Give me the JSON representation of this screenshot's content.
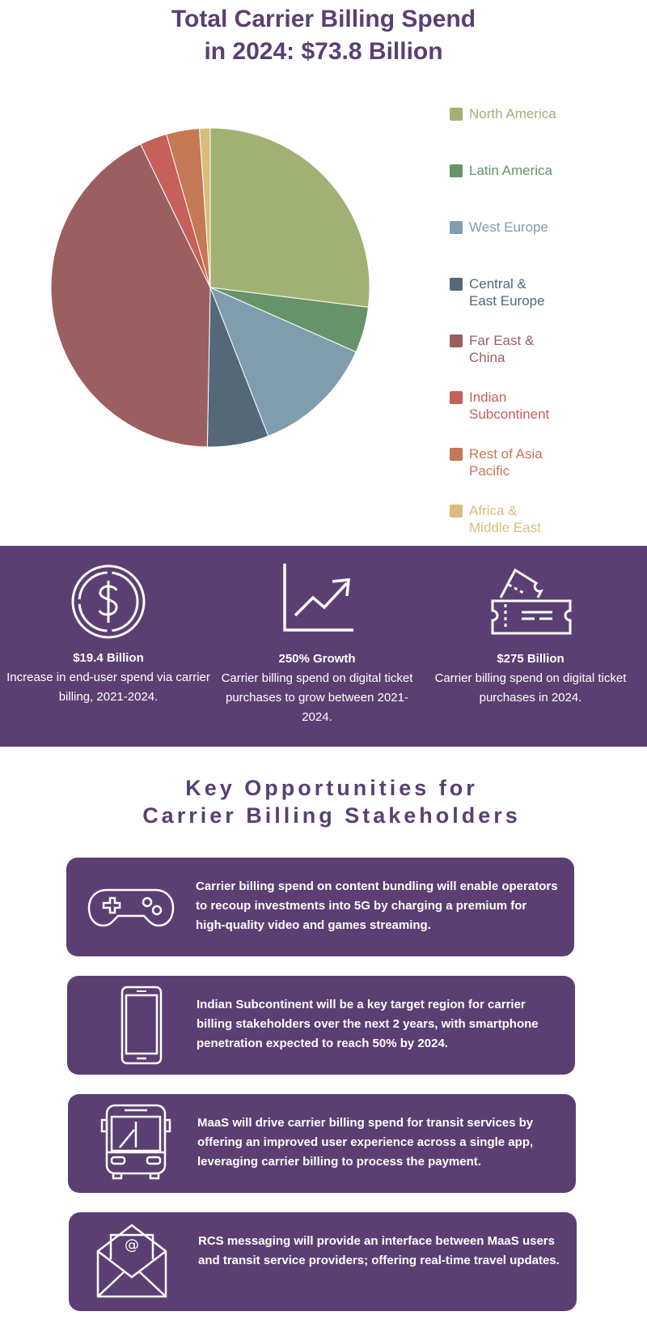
{
  "title": {
    "line1": "Total Carrier Billing Spend",
    "line2": "in 2024: $73.8 Billion"
  },
  "chart_data": {
    "type": "pie",
    "title": "Total Carrier Billing Spend in 2024: $73.8 Billion",
    "slices": [
      {
        "label": "North America",
        "value": 27.3,
        "color": "#a1b173"
      },
      {
        "label": "Latin America",
        "value": 4.7,
        "color": "#669369"
      },
      {
        "label": "West Europe",
        "value": 12.6,
        "color": "#7f9dae"
      },
      {
        "label": "Central &\nEast Europe",
        "value": 6.3,
        "color": "#536879"
      },
      {
        "label": "Far East &\nChina",
        "value": 43.0,
        "color": "#9c5f60"
      },
      {
        "label": "Indian\nSubcontinent",
        "value": 2.8,
        "color": "#c6605a"
      },
      {
        "label": "Rest of Asia\nPacific",
        "value": 3.4,
        "color": "#c47853"
      },
      {
        "label": "Africa &\nMiddle East",
        "value": 1.1,
        "color": "#d8bd7d"
      }
    ],
    "legend_position": "right"
  },
  "stats": [
    {
      "head": "$19.4 Billion",
      "desc": "Increase in end-user spend via carrier billing, 2021-2024.",
      "icon": "dollar-icon"
    },
    {
      "head": "250% Growth",
      "desc": "Carrier billing spend on digital ticket purchases to grow between 2021-2024.",
      "icon": "growth-chart-icon"
    },
    {
      "head": "$275 Billion",
      "desc": "Carrier billing spend on digital ticket purchases in 2024.",
      "icon": "ticket-icon"
    }
  ],
  "opportunities": {
    "title_line1": "Key Opportunities for",
    "title_line2": "Carrier Billing Stakeholders",
    "items": [
      {
        "icon": "gamepad-icon",
        "text": "Carrier billing spend on content bundling will enable operators to recoup investments into 5G by charging a premium for high-quality video and games streaming."
      },
      {
        "icon": "smartphone-icon",
        "text": "Indian Subcontinent will be a key target region for carrier billing stakeholders over the next 2 years, with smartphone penetration expected to reach 50% by 2024."
      },
      {
        "icon": "bus-icon",
        "text": "MaaS will drive carrier billing spend for transit services by offering an improved user experience across a single app, leveraging carrier billing to process the payment."
      },
      {
        "icon": "envelope-icon",
        "text": "RCS messaging will provide an interface between MaaS users and transit service providers; offering real-time travel updates."
      }
    ]
  },
  "colors": {
    "brand_purple": "#5b3f72",
    "white": "#ffffff"
  }
}
